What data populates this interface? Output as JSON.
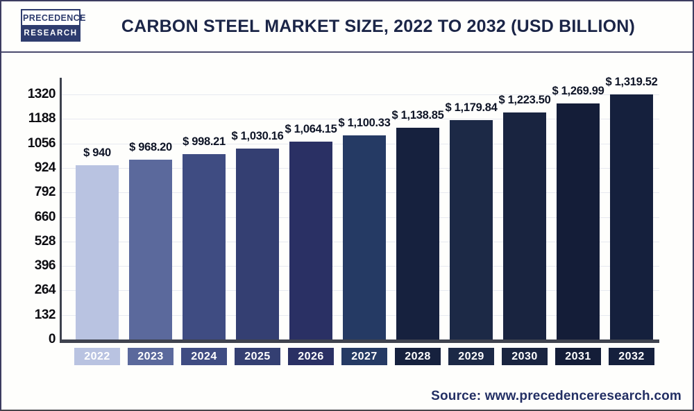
{
  "header": {
    "logo_line1": "PRECEDENCE",
    "logo_line2": "RESEARCH",
    "title": "CARBON STEEL MARKET SIZE, 2022 TO 2032 (USD BILLION)"
  },
  "footer": {
    "source": "Source: www.precedenceresearch.com"
  },
  "colors": {
    "title_navy": "#1b2547",
    "logo_navy": "#2e3c6e",
    "axis_gray": "#3f434f",
    "gridline": "#e7e9f0",
    "source_navy": "#232f64"
  },
  "chart_data": {
    "type": "bar",
    "title": "Carbon Steel Market Size, 2022 to 2032 (USD Billion)",
    "unit": "USD Billion",
    "categories": [
      "2022",
      "2023",
      "2024",
      "2025",
      "2026",
      "2027",
      "2028",
      "2029",
      "2030",
      "2031",
      "2032"
    ],
    "values": [
      940,
      968.2,
      998.21,
      1030.16,
      1064.15,
      1100.33,
      1138.85,
      1179.84,
      1223.5,
      1269.99,
      1319.52
    ],
    "value_labels": [
      "$ 940",
      "$ 968.20",
      "$ 998.21",
      "$ 1,030.16",
      "$ 1,064.15",
      "$ 1,100.33",
      "$ 1,138.85",
      "$ 1,179.84",
      "$ 1,223.50",
      "$ 1,269.99",
      "$ 1,319.52"
    ],
    "bar_colors": [
      "#b9c3e1",
      "#5b699c",
      "#3f4c82",
      "#343f72",
      "#2a3064",
      "#253a64",
      "#16213e",
      "#1c2946",
      "#192440",
      "#141d38",
      "#15203d"
    ],
    "yticks": [
      0,
      132,
      264,
      396,
      528,
      660,
      792,
      924,
      1056,
      1188,
      1320
    ],
    "ylim": [
      0,
      1320
    ],
    "grid": true,
    "legend": "none",
    "xlabel": "",
    "ylabel": ""
  }
}
